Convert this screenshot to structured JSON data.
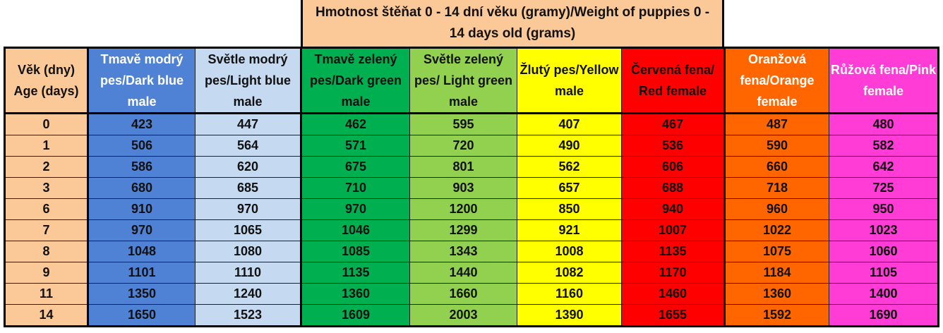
{
  "title": "Hmotnost štěňat 0 - 14 dní věku (gramy)/Weight of puppies 0 - 14 days old (grams)",
  "headers": {
    "age": "Věk (dny) Age (days)",
    "dark_blue": "Tmavě modrý pes/Dark blue male",
    "light_blue": "Světle modrý pes/Light blue male",
    "dark_green": "Tmavě zelený pes/Dark green male",
    "light_green": "Světle zelený pes/ Light green male",
    "yellow": "Žlutý pes/Yellow male",
    "red": "Červená fena/ Red female",
    "orange": "Oranžová fena/Orange female",
    "pink": "Růžová fena/Pink female"
  },
  "colors": {
    "age": "#fbc897",
    "dark_blue": "#4f81d4",
    "light_blue": "#c5d9f1",
    "dark_green": "#00b050",
    "light_green": "#92d050",
    "yellow": "#ffff00",
    "red": "#ff0000",
    "orange": "#ff6600",
    "pink": "#ff3cd6"
  },
  "rows": [
    {
      "age": "0",
      "dark_blue": "423",
      "light_blue": "447",
      "dark_green": "462",
      "light_green": "595",
      "yellow": "407",
      "red": "467",
      "orange": "487",
      "pink": "480"
    },
    {
      "age": "1",
      "dark_blue": "506",
      "light_blue": "564",
      "dark_green": "571",
      "light_green": "720",
      "yellow": "490",
      "red": "536",
      "orange": "590",
      "pink": "582"
    },
    {
      "age": "2",
      "dark_blue": "586",
      "light_blue": "620",
      "dark_green": "675",
      "light_green": "801",
      "yellow": "562",
      "red": "606",
      "orange": "660",
      "pink": "642"
    },
    {
      "age": "3",
      "dark_blue": "680",
      "light_blue": "685",
      "dark_green": "710",
      "light_green": "903",
      "yellow": "657",
      "red": "688",
      "orange": "718",
      "pink": "725"
    },
    {
      "age": "6",
      "dark_blue": "910",
      "light_blue": "970",
      "dark_green": "970",
      "light_green": "1200",
      "yellow": "850",
      "red": "940",
      "orange": "960",
      "pink": "950"
    },
    {
      "age": "7",
      "dark_blue": "970",
      "light_blue": "1065",
      "dark_green": "1046",
      "light_green": "1299",
      "yellow": "921",
      "red": "1007",
      "orange": "1022",
      "pink": "1023"
    },
    {
      "age": "8",
      "dark_blue": "1048",
      "light_blue": "1080",
      "dark_green": "1085",
      "light_green": "1343",
      "yellow": "1008",
      "red": "1135",
      "orange": "1075",
      "pink": "1060"
    },
    {
      "age": "9",
      "dark_blue": "1101",
      "light_blue": "1110",
      "dark_green": "1135",
      "light_green": "1440",
      "yellow": "1082",
      "red": "1170",
      "orange": "1184",
      "pink": "1105"
    },
    {
      "age": "11",
      "dark_blue": "1350",
      "light_blue": "1240",
      "dark_green": "1360",
      "light_green": "1660",
      "yellow": "1160",
      "red": "1460",
      "orange": "1360",
      "pink": "1400"
    },
    {
      "age": "14",
      "dark_blue": "1650",
      "light_blue": "1523",
      "dark_green": "1609",
      "light_green": "2003",
      "yellow": "1390",
      "red": "1655",
      "orange": "1592",
      "pink": "1690"
    }
  ]
}
